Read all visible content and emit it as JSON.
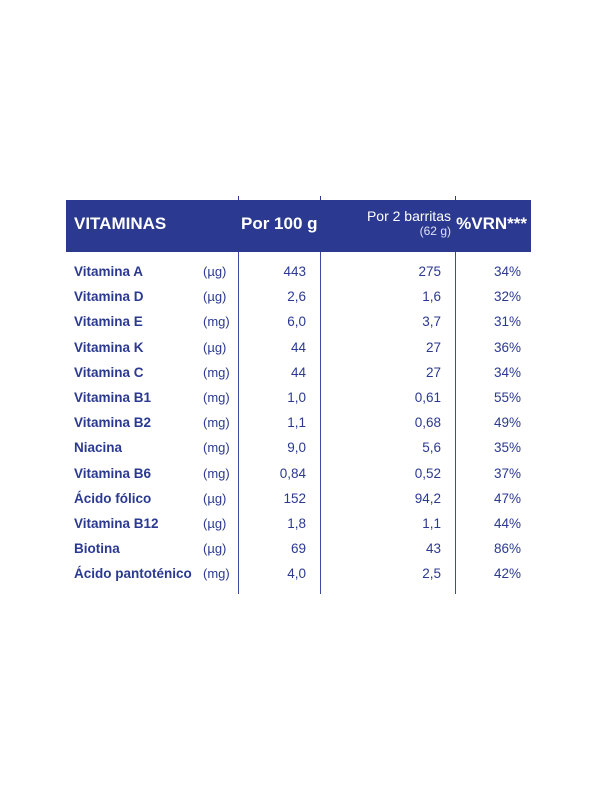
{
  "header": {
    "vitaminas": "VITAMINAS",
    "por_100g": "Por 100 g",
    "por_2_barritas": "Por 2 barritas",
    "por_2_barritas_sub": "(62 g)",
    "vrn": "%VRN***"
  },
  "rows": [
    {
      "name": "Vitamina A",
      "unit": "(µg)",
      "per100": "443",
      "per2": "275",
      "vrn": "34%"
    },
    {
      "name": "Vitamina D",
      "unit": "(µg)",
      "per100": "2,6",
      "per2": "1,6",
      "vrn": "32%"
    },
    {
      "name": "Vitamina E",
      "unit": "(mg)",
      "per100": "6,0",
      "per2": "3,7",
      "vrn": "31%"
    },
    {
      "name": "Vitamina K",
      "unit": "(µg)",
      "per100": "44",
      "per2": "27",
      "vrn": "36%"
    },
    {
      "name": "Vitamina C",
      "unit": "(mg)",
      "per100": "44",
      "per2": "27",
      "vrn": "34%"
    },
    {
      "name": "Vitamina B1",
      "unit": "(mg)",
      "per100": "1,0",
      "per2": "0,61",
      "vrn": "55%"
    },
    {
      "name": "Vitamina B2",
      "unit": "(mg)",
      "per100": "1,1",
      "per2": "0,68",
      "vrn": "49%"
    },
    {
      "name": "Niacina",
      "unit": "(mg)",
      "per100": "9,0",
      "per2": "5,6",
      "vrn": "35%"
    },
    {
      "name": "Vitamina B6",
      "unit": "(mg)",
      "per100": "0,84",
      "per2": "0,52",
      "vrn": "37%"
    },
    {
      "name": "Ácido fólico",
      "unit": "(µg)",
      "per100": "152",
      "per2": "94,2",
      "vrn": "47%"
    },
    {
      "name": "Vitamina B12",
      "unit": "(µg)",
      "per100": "1,8",
      "per2": "1,1",
      "vrn": "44%"
    },
    {
      "name": "Biotina",
      "unit": "(µg)",
      "per100": "69",
      "per2": "43",
      "vrn": "86%"
    },
    {
      "name": "Ácido pantoténico",
      "unit": "(mg)",
      "per100": "4,0",
      "per2": "2,5",
      "vrn": "42%"
    }
  ],
  "colors": {
    "header_bg": "#2b3990",
    "text": "#2b3990",
    "header_text": "#ffffff"
  }
}
